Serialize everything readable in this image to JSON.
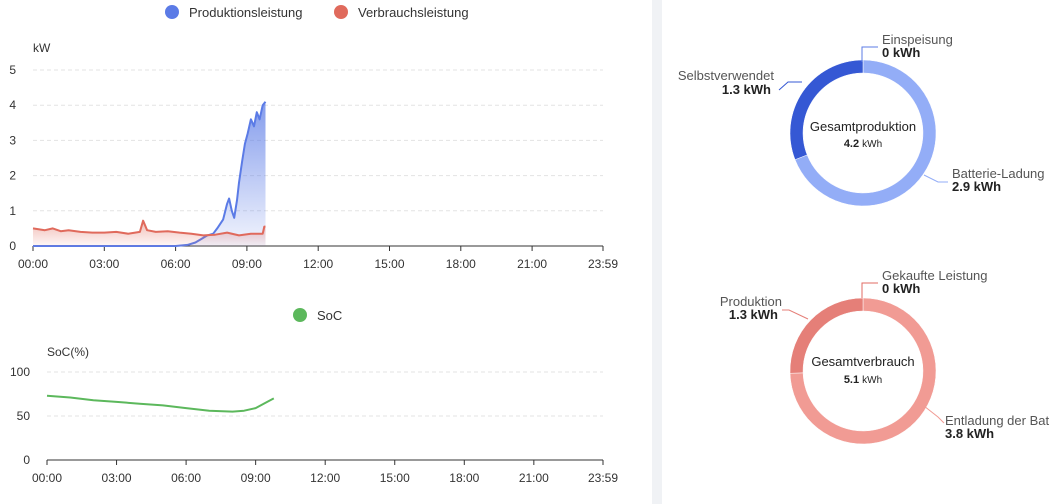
{
  "chart_data": [
    {
      "type": "area",
      "ylabel": "kW",
      "ylim": [
        0,
        5
      ],
      "yticks": [
        "0",
        "1",
        "2",
        "3",
        "4",
        "5"
      ],
      "xticks": [
        "00:00",
        "03:00",
        "06:00",
        "09:00",
        "12:00",
        "15:00",
        "18:00",
        "21:00",
        "23:59"
      ],
      "xrange": [
        "00:00",
        "23:59"
      ],
      "grid": true,
      "legend_position": "top",
      "series": [
        {
          "name": "Produktionsleistung",
          "color": "#5b7be6",
          "points": [
            [
              "00:00",
              0
            ],
            [
              "01:00",
              0
            ],
            [
              "02:00",
              0
            ],
            [
              "03:00",
              0
            ],
            [
              "04:00",
              0
            ],
            [
              "05:00",
              0
            ],
            [
              "06:00",
              0
            ],
            [
              "06:30",
              0.03
            ],
            [
              "06:50",
              0.1
            ],
            [
              "07:05",
              0.2
            ],
            [
              "07:20",
              0.3
            ],
            [
              "07:35",
              0.35
            ],
            [
              "07:45",
              0.5
            ],
            [
              "08:00",
              0.75
            ],
            [
              "08:10",
              1.2
            ],
            [
              "08:15",
              1.35
            ],
            [
              "08:22",
              1.0
            ],
            [
              "08:28",
              0.8
            ],
            [
              "08:35",
              1.3
            ],
            [
              "08:40",
              1.8
            ],
            [
              "08:48",
              2.4
            ],
            [
              "08:55",
              2.9
            ],
            [
              "09:02",
              3.2
            ],
            [
              "09:10",
              3.6
            ],
            [
              "09:18",
              3.4
            ],
            [
              "09:25",
              3.8
            ],
            [
              "09:32",
              3.6
            ],
            [
              "09:40",
              4.0
            ],
            [
              "09:47",
              4.1
            ]
          ]
        },
        {
          "name": "Verbrauchsleistung",
          "color": "#e06a5c",
          "points": [
            [
              "00:00",
              0.5
            ],
            [
              "00:30",
              0.45
            ],
            [
              "00:50",
              0.5
            ],
            [
              "01:10",
              0.42
            ],
            [
              "01:30",
              0.45
            ],
            [
              "02:00",
              0.4
            ],
            [
              "02:30",
              0.38
            ],
            [
              "03:00",
              0.38
            ],
            [
              "03:30",
              0.4
            ],
            [
              "04:00",
              0.35
            ],
            [
              "04:30",
              0.4
            ],
            [
              "04:38",
              0.72
            ],
            [
              "04:48",
              0.45
            ],
            [
              "05:10",
              0.4
            ],
            [
              "05:40",
              0.42
            ],
            [
              "06:10",
              0.38
            ],
            [
              "06:40",
              0.35
            ],
            [
              "07:10",
              0.3
            ],
            [
              "07:40",
              0.32
            ],
            [
              "08:10",
              0.38
            ],
            [
              "08:40",
              0.3
            ],
            [
              "09:10",
              0.35
            ],
            [
              "09:40",
              0.35
            ],
            [
              "09:44",
              0.55
            ],
            [
              "09:47",
              0.55
            ]
          ]
        }
      ]
    },
    {
      "type": "line",
      "ylabel": "SoC(%)",
      "ylim": [
        0,
        100
      ],
      "yticks": [
        "0",
        "50",
        "100"
      ],
      "xticks": [
        "00:00",
        "03:00",
        "06:00",
        "09:00",
        "12:00",
        "15:00",
        "18:00",
        "21:00",
        "23:59"
      ],
      "xrange": [
        "00:00",
        "23:59"
      ],
      "grid": true,
      "legend_position": "top",
      "series": [
        {
          "name": "SoC",
          "color": "#5cb85c",
          "points": [
            [
              "00:00",
              73
            ],
            [
              "01:00",
              71
            ],
            [
              "02:00",
              68
            ],
            [
              "03:00",
              66
            ],
            [
              "04:00",
              64
            ],
            [
              "05:00",
              62
            ],
            [
              "06:00",
              59
            ],
            [
              "07:00",
              56
            ],
            [
              "08:00",
              55
            ],
            [
              "08:30",
              56
            ],
            [
              "09:00",
              59
            ],
            [
              "09:30",
              66
            ],
            [
              "09:47",
              70
            ]
          ]
        }
      ]
    },
    {
      "type": "pie",
      "variant": "donut",
      "center_title": "Gesamtproduktion",
      "center_value": "4.2",
      "center_unit": "kWh",
      "slices": [
        {
          "name": "Einspeisung",
          "value": 0,
          "value_label": "0 kWh",
          "color": "#5b7be6"
        },
        {
          "name": "Batterie-Ladung",
          "value": 2.9,
          "value_label": "2.9 kWh",
          "color": "#93adf7"
        },
        {
          "name": "Selbstverwendet",
          "value": 1.3,
          "value_label": "1.3 kWh",
          "color": "#3558d4"
        }
      ]
    },
    {
      "type": "pie",
      "variant": "donut",
      "center_title": "Gesamtverbrauch",
      "center_value": "5.1",
      "center_unit": "kWh",
      "slices": [
        {
          "name": "Gekaufte Leistung",
          "value": 0,
          "value_label": "0 kWh",
          "color": "#e26b63"
        },
        {
          "name": "Entladung der Bat",
          "value": 3.8,
          "value_label": "3.8 kWh",
          "color": "#f19b94"
        },
        {
          "name": "Produktion",
          "value": 1.3,
          "value_label": "1.3 kWh",
          "color": "#e57f78"
        }
      ]
    }
  ]
}
